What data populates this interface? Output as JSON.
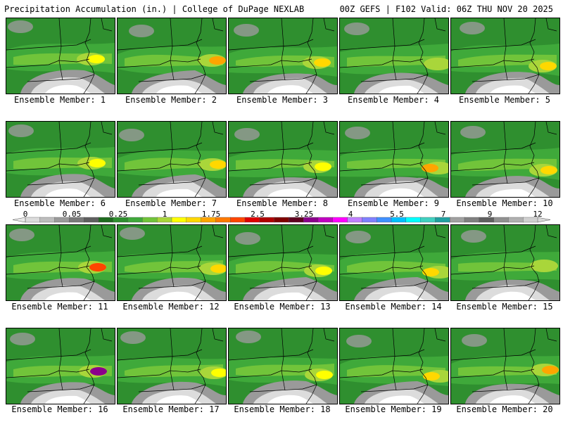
{
  "header": {
    "title_left": "Precipitation Accumulation (in.) | College of DuPage NEXLAB",
    "title_right": "00Z GEFS | F102 Valid: 06Z THU NOV 20 2025"
  },
  "colorbar": {
    "ticks": [
      "0",
      "0.05",
      "0.25",
      "1",
      "1.75",
      "2.5",
      "3.25",
      "4",
      "5.5",
      "7",
      "9",
      "12"
    ],
    "colors": [
      "#dcdcdc",
      "#bdbdbd",
      "#9a9a9a",
      "#7a7a7a",
      "#5f5f5f",
      "#1f6b1f",
      "#2f8f2f",
      "#3fa93a",
      "#71c43a",
      "#a9d63a",
      "#ffff00",
      "#ffd800",
      "#ffa500",
      "#ff7a00",
      "#ff4500",
      "#e00000",
      "#b00000",
      "#800000",
      "#600020",
      "#8b008b",
      "#c000c0",
      "#ff00ff",
      "#c080ff",
      "#8080ff",
      "#4090ff",
      "#00c0ff",
      "#00ffff",
      "#40d0c0",
      "#20a0a0",
      "#a0a0a0",
      "#808080",
      "#606060",
      "#909090",
      "#b0b0b0",
      "#d0d0d0"
    ]
  },
  "members": [
    {
      "label": "Ensemble Member: 1",
      "max_color": "#ffff00"
    },
    {
      "label": "Ensemble Member: 2",
      "max_color": "#ffa500"
    },
    {
      "label": "Ensemble Member: 3",
      "max_color": "#ffd800"
    },
    {
      "label": "Ensemble Member: 4",
      "max_color": "#a9d63a"
    },
    {
      "label": "Ensemble Member: 5",
      "max_color": "#ffd800"
    },
    {
      "label": "Ensemble Member: 6",
      "max_color": "#ffff00"
    },
    {
      "label": "Ensemble Member: 7",
      "max_color": "#ffd800"
    },
    {
      "label": "Ensemble Member: 8",
      "max_color": "#ffff00"
    },
    {
      "label": "Ensemble Member: 9",
      "max_color": "#ffa500"
    },
    {
      "label": "Ensemble Member: 10",
      "max_color": "#ffd800"
    },
    {
      "label": "Ensemble Member: 11",
      "max_color": "#ff4500"
    },
    {
      "label": "Ensemble Member: 12",
      "max_color": "#ffd800"
    },
    {
      "label": "Ensemble Member: 13",
      "max_color": "#ffff00"
    },
    {
      "label": "Ensemble Member: 14",
      "max_color": "#ffd800"
    },
    {
      "label": "Ensemble Member: 15",
      "max_color": "#a9d63a"
    },
    {
      "label": "Ensemble Member: 16",
      "max_color": "#8b008b"
    },
    {
      "label": "Ensemble Member: 17",
      "max_color": "#ffff00"
    },
    {
      "label": "Ensemble Member: 18",
      "max_color": "#ffff00"
    },
    {
      "label": "Ensemble Member: 19",
      "max_color": "#ffd800"
    },
    {
      "label": "Ensemble Member: 20",
      "max_color": "#ffa500"
    }
  ]
}
